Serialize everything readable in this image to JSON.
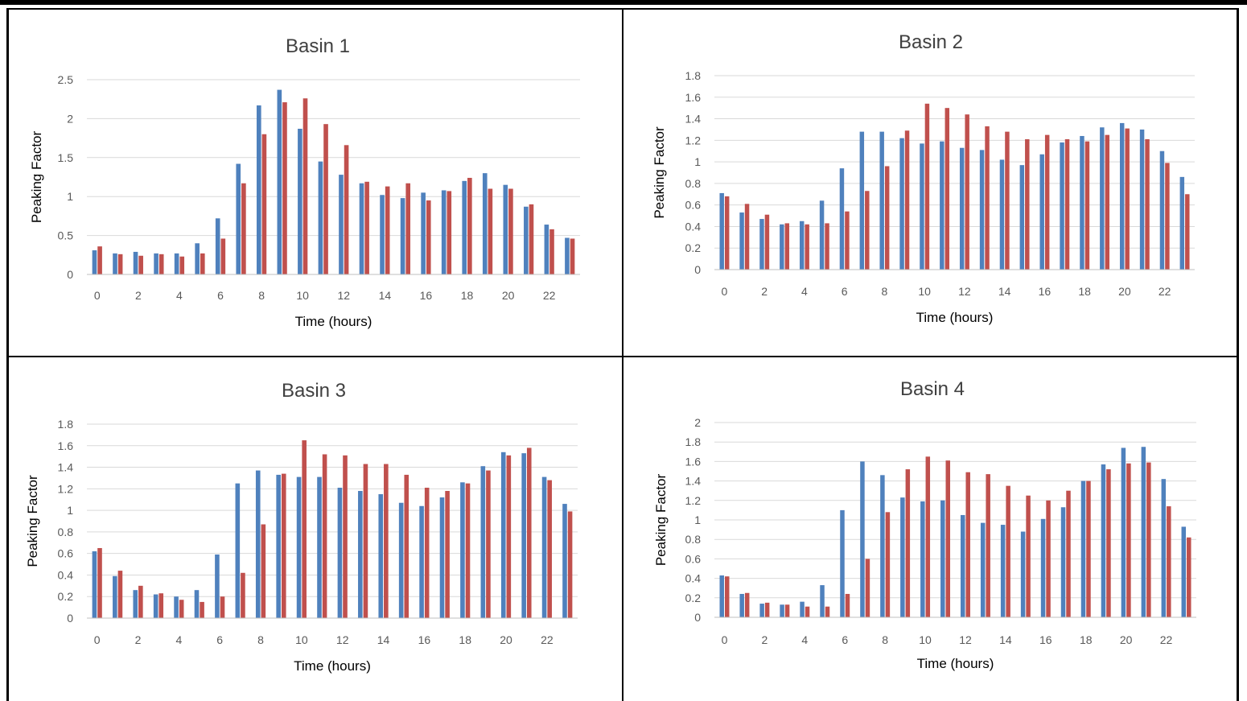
{
  "colors": {
    "series1": "#4f81bd",
    "series2": "#c0504d"
  },
  "charts": [
    {
      "title": "Basin 1",
      "xlabel": "Time (hours)",
      "ylabel": "Peaking Factor",
      "y_ticks": [
        "0",
        "0.5",
        "1",
        "1.5",
        "2",
        "2.5"
      ],
      "x_ticks": [
        "0",
        "2",
        "4",
        "6",
        "8",
        "10",
        "12",
        "14",
        "16",
        "18",
        "20",
        "22"
      ]
    },
    {
      "title": "Basin 2",
      "xlabel": "Time (hours)",
      "ylabel": "Peaking Factor",
      "y_ticks": [
        "0",
        "0.2",
        "0.4",
        "0.6",
        "0.8",
        "1",
        "1.2",
        "1.4",
        "1.6",
        "1.8"
      ],
      "x_ticks": [
        "0",
        "2",
        "4",
        "6",
        "8",
        "10",
        "12",
        "14",
        "16",
        "18",
        "20",
        "22"
      ]
    },
    {
      "title": "Basin 3",
      "xlabel": "Time (hours)",
      "ylabel": "Peaking Factor",
      "y_ticks": [
        "0",
        "0.2",
        "0.4",
        "0.6",
        "0.8",
        "1",
        "1.2",
        "1.4",
        "1.6",
        "1.8"
      ],
      "x_ticks": [
        "0",
        "2",
        "4",
        "6",
        "8",
        "10",
        "12",
        "14",
        "16",
        "18",
        "20",
        "22"
      ]
    },
    {
      "title": "Basin 4",
      "xlabel": "Time (hours)",
      "ylabel": "Peaking Factor",
      "y_ticks": [
        "0",
        "0.2",
        "0.4",
        "0.6",
        "0.8",
        "1",
        "1.2",
        "1.4",
        "1.6",
        "1.8",
        "2"
      ],
      "x_ticks": [
        "0",
        "2",
        "4",
        "6",
        "8",
        "10",
        "12",
        "14",
        "16",
        "18",
        "20",
        "22"
      ]
    }
  ],
  "chart_data": [
    {
      "type": "bar",
      "title": "Basin 1",
      "xlabel": "Time (hours)",
      "ylabel": "Peaking Factor",
      "ylim": [
        0,
        2.5
      ],
      "grid": true,
      "legend": "none",
      "categories": [
        0,
        1,
        2,
        3,
        4,
        5,
        6,
        7,
        8,
        9,
        10,
        11,
        12,
        13,
        14,
        15,
        16,
        17,
        18,
        19,
        20,
        21,
        22,
        23
      ],
      "series": [
        {
          "values": [
            0.31,
            0.27,
            0.29,
            0.27,
            0.27,
            0.4,
            0.72,
            1.42,
            2.17,
            2.37,
            1.87,
            1.45,
            1.28,
            1.17,
            1.02,
            0.98,
            1.05,
            1.08,
            1.2,
            1.3,
            1.15,
            0.87,
            0.64,
            0.47
          ]
        },
        {
          "values": [
            0.36,
            0.26,
            0.24,
            0.26,
            0.23,
            0.27,
            0.46,
            1.17,
            1.8,
            2.21,
            2.26,
            1.93,
            1.66,
            1.19,
            1.13,
            1.17,
            0.95,
            1.07,
            1.24,
            1.1,
            1.1,
            0.9,
            0.58,
            0.46
          ]
        }
      ]
    },
    {
      "type": "bar",
      "title": "Basin 2",
      "xlabel": "Time (hours)",
      "ylabel": "Peaking Factor",
      "ylim": [
        0,
        1.8
      ],
      "grid": true,
      "legend": "none",
      "categories": [
        0,
        1,
        2,
        3,
        4,
        5,
        6,
        7,
        8,
        9,
        10,
        11,
        12,
        13,
        14,
        15,
        16,
        17,
        18,
        19,
        20,
        21,
        22,
        23
      ],
      "series": [
        {
          "values": [
            0.71,
            0.53,
            0.47,
            0.42,
            0.45,
            0.64,
            0.94,
            1.28,
            1.28,
            1.22,
            1.17,
            1.19,
            1.13,
            1.11,
            1.02,
            0.97,
            1.07,
            1.18,
            1.24,
            1.32,
            1.36,
            1.3,
            1.1,
            0.86
          ]
        },
        {
          "values": [
            0.68,
            0.61,
            0.51,
            0.43,
            0.42,
            0.43,
            0.54,
            0.73,
            0.96,
            1.29,
            1.54,
            1.5,
            1.44,
            1.33,
            1.28,
            1.21,
            1.25,
            1.21,
            1.19,
            1.25,
            1.31,
            1.21,
            0.99,
            0.7
          ]
        }
      ]
    },
    {
      "type": "bar",
      "title": "Basin 3",
      "xlabel": "Time (hours)",
      "ylabel": "Peaking Factor",
      "ylim": [
        0,
        1.8
      ],
      "grid": true,
      "legend": "none",
      "categories": [
        0,
        1,
        2,
        3,
        4,
        5,
        6,
        7,
        8,
        9,
        10,
        11,
        12,
        13,
        14,
        15,
        16,
        17,
        18,
        19,
        20,
        21,
        22,
        23
      ],
      "series": [
        {
          "values": [
            0.62,
            0.39,
            0.26,
            0.22,
            0.2,
            0.26,
            0.59,
            1.25,
            1.37,
            1.33,
            1.31,
            1.31,
            1.21,
            1.18,
            1.15,
            1.07,
            1.04,
            1.12,
            1.26,
            1.41,
            1.54,
            1.53,
            1.31,
            1.06
          ]
        },
        {
          "values": [
            0.65,
            0.44,
            0.3,
            0.23,
            0.17,
            0.15,
            0.2,
            0.42,
            0.87,
            1.34,
            1.65,
            1.52,
            1.51,
            1.43,
            1.43,
            1.33,
            1.21,
            1.18,
            1.25,
            1.37,
            1.51,
            1.58,
            1.28,
            0.99
          ]
        }
      ]
    },
    {
      "type": "bar",
      "title": "Basin 4",
      "xlabel": "Time (hours)",
      "ylabel": "Peaking Factor",
      "ylim": [
        0,
        2
      ],
      "grid": true,
      "legend": "none",
      "categories": [
        0,
        1,
        2,
        3,
        4,
        5,
        6,
        7,
        8,
        9,
        10,
        11,
        12,
        13,
        14,
        15,
        16,
        17,
        18,
        19,
        20,
        21,
        22,
        23
      ],
      "series": [
        {
          "values": [
            0.43,
            0.24,
            0.14,
            0.13,
            0.16,
            0.33,
            1.1,
            1.6,
            1.46,
            1.23,
            1.19,
            1.2,
            1.05,
            0.97,
            0.95,
            0.88,
            1.01,
            1.13,
            1.4,
            1.57,
            1.74,
            1.75,
            1.42,
            0.93
          ]
        },
        {
          "values": [
            0.42,
            0.25,
            0.15,
            0.13,
            0.11,
            0.11,
            0.24,
            0.6,
            1.08,
            1.52,
            1.65,
            1.61,
            1.49,
            1.47,
            1.35,
            1.25,
            1.2,
            1.3,
            1.4,
            1.52,
            1.58,
            1.59,
            1.14,
            0.82
          ]
        }
      ]
    }
  ]
}
